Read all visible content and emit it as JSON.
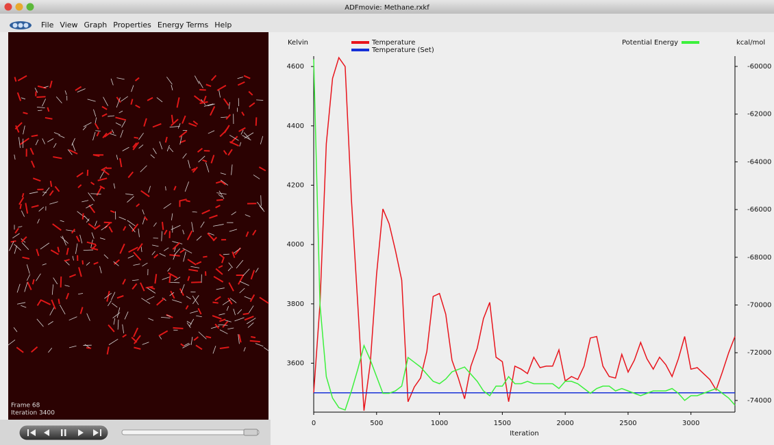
{
  "window": {
    "title": "ADFmovie: Methane.rxkf"
  },
  "menu": [
    "File",
    "View",
    "Graph",
    "Properties",
    "Energy Terms",
    "Help"
  ],
  "viewer": {
    "frame": "Frame 68",
    "iteration": "Iteration 3400"
  },
  "chart_data": {
    "type": "line",
    "ylabel": "Kelvin",
    "y2label": "kcal/mol",
    "xlabel": "Iteration",
    "x": [
      0,
      50,
      100,
      150,
      200,
      250,
      300,
      350,
      400,
      450,
      500,
      550,
      600,
      650,
      700,
      750,
      800,
      850,
      900,
      950,
      1000,
      1050,
      1100,
      1150,
      1200,
      1250,
      1300,
      1350,
      1400,
      1450,
      1500,
      1550,
      1600,
      1650,
      1700,
      1750,
      1800,
      1850,
      1900,
      1950,
      2000,
      2050,
      2100,
      2150,
      2200,
      2250,
      2300,
      2350,
      2400,
      2450,
      2500,
      2550,
      2600,
      2650,
      2700,
      2750,
      2800,
      2850,
      2900,
      2950,
      3000,
      3050,
      3100,
      3150,
      3200,
      3250,
      3300,
      3350
    ],
    "series": [
      {
        "name": "Temperature",
        "color": "#e8141c",
        "values": [
          3500,
          3800,
          4340,
          4560,
          4630,
          4600,
          4150,
          3800,
          3440,
          3600,
          3900,
          4120,
          4070,
          3980,
          3880,
          3470,
          3520,
          3550,
          3640,
          3825,
          3835,
          3765,
          3610,
          3550,
          3480,
          3590,
          3650,
          3750,
          3805,
          3620,
          3605,
          3470,
          3590,
          3580,
          3565,
          3620,
          3585,
          3590,
          3590,
          3645,
          3540,
          3555,
          3545,
          3590,
          3685,
          3690,
          3590,
          3555,
          3550,
          3630,
          3570,
          3610,
          3670,
          3615,
          3580,
          3620,
          3595,
          3555,
          3615,
          3690,
          3580,
          3585,
          3565,
          3545,
          3510,
          3570,
          3635,
          3690
        ]
      },
      {
        "name": "Temperature (Set)",
        "color": "#1530d8",
        "x": [
          0,
          3350
        ],
        "values": [
          3500,
          3500
        ]
      },
      {
        "name": "Potential Energy",
        "color": "#3cf03c",
        "axis": "y2",
        "values": [
          -59700,
          -70000,
          -73000,
          -73900,
          -74300,
          -74400,
          -73600,
          -72700,
          -71700,
          -72300,
          -73000,
          -73700,
          -73700,
          -73600,
          -73400,
          -72200,
          -72400,
          -72600,
          -72900,
          -73200,
          -73300,
          -73100,
          -72800,
          -72700,
          -72600,
          -72900,
          -73200,
          -73600,
          -73800,
          -73400,
          -73400,
          -73000,
          -73300,
          -73300,
          -73200,
          -73300,
          -73300,
          -73300,
          -73300,
          -73500,
          -73200,
          -73200,
          -73300,
          -73500,
          -73700,
          -73500,
          -73400,
          -73400,
          -73600,
          -73500,
          -73600,
          -73700,
          -73800,
          -73700,
          -73600,
          -73600,
          -73600,
          -73500,
          -73700,
          -74000,
          -73800,
          -73800,
          -73700,
          -73600,
          -73500,
          -73700,
          -73900,
          -74200
        ]
      }
    ],
    "xlim": [
      0,
      3350
    ],
    "xticks": [
      0,
      500,
      1000,
      1500,
      2000,
      2500,
      3000
    ],
    "ylim": [
      3435,
      4635
    ],
    "yticks": [
      3600,
      3800,
      4000,
      4200,
      4400,
      4600
    ],
    "y2lim": [
      -74490,
      -59570
    ],
    "y2ticks": [
      -74000,
      -72000,
      -70000,
      -68000,
      -66000,
      -64000,
      -62000,
      -60000
    ]
  }
}
